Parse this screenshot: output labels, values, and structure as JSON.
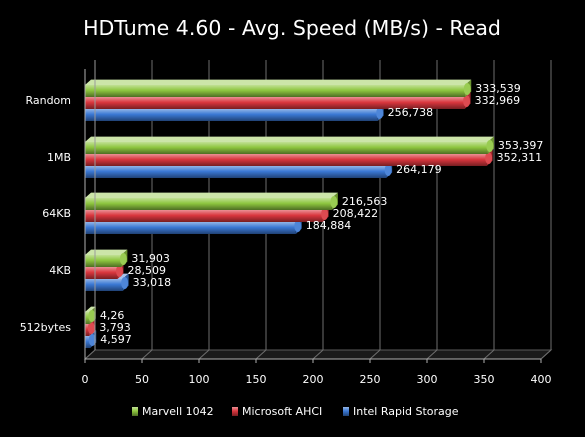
{
  "chart_data": {
    "type": "bar",
    "orientation": "horizontal",
    "title": "HDTume 4.60 - Avg. Speed (MB/s) - Read",
    "xlabel": "",
    "ylabel": "",
    "xlim": [
      0,
      400
    ],
    "x_ticks": [
      "0",
      "50",
      "100",
      "150",
      "200",
      "250",
      "300",
      "350",
      "400"
    ],
    "grid": true,
    "legend_position": "bottom",
    "categories": [
      "Random",
      "1MB",
      "64KB",
      "4KB",
      "512bytes"
    ],
    "series": [
      {
        "name": "Marvell 1042",
        "color": "#8ec63f",
        "values": [
          333.539,
          353.397,
          216.563,
          31.903,
          4.26
        ],
        "labels": [
          "333,539",
          "353,397",
          "216,563",
          "31,903",
          "4,26"
        ]
      },
      {
        "name": "Microsoft AHCI",
        "color": "#d9363e",
        "values": [
          332.969,
          352.311,
          208.422,
          28.509,
          3.793
        ],
        "labels": [
          "332,969",
          "352,311",
          "208,422",
          "28,509",
          "3,793"
        ]
      },
      {
        "name": "Intel Rapid Storage",
        "color": "#3a78d4",
        "values": [
          256.738,
          264.179,
          184.884,
          33.018,
          4.597
        ],
        "labels": [
          "256,738",
          "264,179",
          "184,884",
          "33,018",
          "4,597"
        ]
      }
    ]
  }
}
